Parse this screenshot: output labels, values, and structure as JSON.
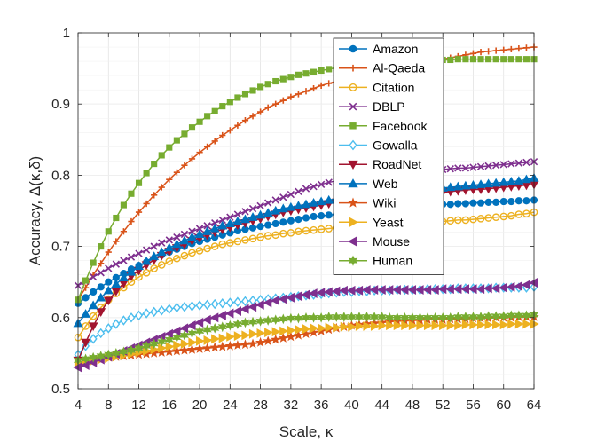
{
  "chart_data": {
    "type": "line",
    "title": "",
    "xlabel": "Scale, κ",
    "ylabel": "Accuracy, Δ(κ,δ)",
    "xlim": [
      4,
      64
    ],
    "ylim": [
      0.5,
      1
    ],
    "xticks": [
      4,
      8,
      12,
      16,
      20,
      24,
      28,
      32,
      36,
      40,
      44,
      48,
      52,
      56,
      60,
      64
    ],
    "yticks": [
      0.5,
      0.6,
      0.7,
      0.8,
      0.9,
      1
    ],
    "ytick_labels": [
      "0.5",
      "0.6",
      "0.7",
      "0.8",
      "0.9",
      "1"
    ],
    "grid": true,
    "legend_position": "top-right",
    "x": [
      4,
      5,
      6,
      7,
      8,
      9,
      10,
      11,
      12,
      13,
      14,
      15,
      16,
      17,
      18,
      19,
      20,
      21,
      22,
      23,
      24,
      25,
      26,
      27,
      28,
      29,
      30,
      31,
      32,
      33,
      34,
      35,
      36,
      37,
      38,
      39,
      40,
      41,
      42,
      43,
      44,
      45,
      46,
      47,
      48,
      49,
      50,
      51,
      52,
      53,
      54,
      55,
      56,
      57,
      58,
      59,
      60,
      61,
      62,
      63,
      64
    ],
    "series": [
      {
        "name": "Amazon",
        "color": "#0072BD",
        "marker": "circle",
        "values": [
          0.62,
          0.628,
          0.636,
          0.643,
          0.65,
          0.656,
          0.662,
          0.668,
          0.673,
          0.678,
          0.683,
          0.688,
          0.692,
          0.696,
          0.7,
          0.704,
          0.707,
          0.71,
          0.713,
          0.716,
          0.719,
          0.722,
          0.724,
          0.726,
          0.728,
          0.73,
          0.732,
          0.734,
          0.736,
          0.738,
          0.74,
          0.742,
          0.743,
          0.744,
          0.745,
          0.746,
          0.747,
          0.748,
          0.749,
          0.75,
          0.751,
          0.752,
          0.753,
          0.754,
          0.755,
          0.756,
          0.757,
          0.758,
          0.759,
          0.759,
          0.76,
          0.76,
          0.761,
          0.761,
          0.762,
          0.762,
          0.763,
          0.763,
          0.764,
          0.764,
          0.765
        ]
      },
      {
        "name": "Al-Qaeda",
        "color": "#D95319",
        "marker": "plus",
        "values": [
          0.625,
          0.642,
          0.66,
          0.676,
          0.692,
          0.707,
          0.721,
          0.735,
          0.748,
          0.76,
          0.772,
          0.783,
          0.794,
          0.804,
          0.814,
          0.823,
          0.832,
          0.84,
          0.848,
          0.856,
          0.863,
          0.87,
          0.877,
          0.883,
          0.889,
          0.895,
          0.9,
          0.905,
          0.91,
          0.914,
          0.918,
          0.922,
          0.926,
          0.929,
          0.932,
          0.935,
          0.938,
          0.941,
          0.943,
          0.945,
          0.947,
          0.949,
          0.951,
          0.953,
          0.955,
          0.957,
          0.959,
          0.961,
          0.963,
          0.965,
          0.967,
          0.969,
          0.971,
          0.973,
          0.974,
          0.975,
          0.976,
          0.977,
          0.978,
          0.979,
          0.98
        ]
      },
      {
        "name": "Citation",
        "color": "#EDB120",
        "marker": "circle-open",
        "values": [
          0.572,
          0.588,
          0.602,
          0.614,
          0.625,
          0.634,
          0.642,
          0.65,
          0.657,
          0.663,
          0.669,
          0.674,
          0.679,
          0.683,
          0.687,
          0.691,
          0.694,
          0.697,
          0.7,
          0.703,
          0.705,
          0.707,
          0.709,
          0.711,
          0.713,
          0.715,
          0.716,
          0.718,
          0.719,
          0.721,
          0.722,
          0.723,
          0.724,
          0.725,
          0.726,
          0.727,
          0.728,
          0.729,
          0.729,
          0.73,
          0.731,
          0.731,
          0.732,
          0.733,
          0.733,
          0.734,
          0.734,
          0.735,
          0.735,
          0.736,
          0.737,
          0.737,
          0.738,
          0.739,
          0.74,
          0.741,
          0.742,
          0.743,
          0.745,
          0.746,
          0.748
        ]
      },
      {
        "name": "DBLP",
        "color": "#7E2F8E",
        "marker": "x",
        "values": [
          0.645,
          0.651,
          0.657,
          0.663,
          0.669,
          0.675,
          0.68,
          0.685,
          0.69,
          0.695,
          0.7,
          0.705,
          0.709,
          0.713,
          0.717,
          0.721,
          0.725,
          0.729,
          0.733,
          0.737,
          0.741,
          0.745,
          0.749,
          0.753,
          0.757,
          0.761,
          0.765,
          0.769,
          0.773,
          0.777,
          0.781,
          0.784,
          0.787,
          0.79,
          0.792,
          0.794,
          0.796,
          0.797,
          0.798,
          0.799,
          0.8,
          0.801,
          0.802,
          0.803,
          0.804,
          0.805,
          0.806,
          0.807,
          0.808,
          0.809,
          0.81,
          0.81,
          0.811,
          0.812,
          0.813,
          0.814,
          0.815,
          0.816,
          0.817,
          0.818,
          0.819
        ]
      },
      {
        "name": "Facebook",
        "color": "#77AC30",
        "marker": "square",
        "values": [
          0.625,
          0.652,
          0.677,
          0.7,
          0.721,
          0.74,
          0.758,
          0.774,
          0.789,
          0.803,
          0.816,
          0.828,
          0.839,
          0.849,
          0.858,
          0.867,
          0.875,
          0.883,
          0.89,
          0.897,
          0.903,
          0.909,
          0.914,
          0.919,
          0.924,
          0.928,
          0.932,
          0.935,
          0.938,
          0.941,
          0.943,
          0.945,
          0.947,
          0.949,
          0.951,
          0.952,
          0.953,
          0.954,
          0.955,
          0.956,
          0.957,
          0.958,
          0.959,
          0.96,
          0.96,
          0.961,
          0.961,
          0.962,
          0.962,
          0.962,
          0.963,
          0.963,
          0.963,
          0.963,
          0.963,
          0.963,
          0.963,
          0.963,
          0.963,
          0.963,
          0.963
        ]
      },
      {
        "name": "Gowalla",
        "color": "#4DBEEE",
        "marker": "diamond-open",
        "values": [
          0.548,
          0.56,
          0.57,
          0.578,
          0.585,
          0.591,
          0.596,
          0.6,
          0.603,
          0.606,
          0.608,
          0.61,
          0.612,
          0.614,
          0.615,
          0.616,
          0.617,
          0.618,
          0.619,
          0.62,
          0.621,
          0.622,
          0.623,
          0.624,
          0.625,
          0.626,
          0.627,
          0.628,
          0.629,
          0.63,
          0.631,
          0.632,
          0.633,
          0.634,
          0.635,
          0.636,
          0.636,
          0.637,
          0.637,
          0.638,
          0.638,
          0.638,
          0.639,
          0.639,
          0.639,
          0.639,
          0.64,
          0.64,
          0.64,
          0.64,
          0.641,
          0.641,
          0.641,
          0.641,
          0.641,
          0.642,
          0.642,
          0.642,
          0.642,
          0.642,
          0.643
        ]
      },
      {
        "name": "RoadNet",
        "color": "#A2142F",
        "marker": "triangle-down",
        "values": [
          0.54,
          0.565,
          0.588,
          0.608,
          0.624,
          0.637,
          0.648,
          0.658,
          0.666,
          0.674,
          0.681,
          0.687,
          0.693,
          0.698,
          0.703,
          0.708,
          0.712,
          0.716,
          0.72,
          0.724,
          0.727,
          0.73,
          0.733,
          0.736,
          0.739,
          0.742,
          0.745,
          0.748,
          0.75,
          0.752,
          0.754,
          0.756,
          0.758,
          0.76,
          0.762,
          0.763,
          0.764,
          0.765,
          0.766,
          0.767,
          0.768,
          0.769,
          0.77,
          0.771,
          0.772,
          0.773,
          0.774,
          0.775,
          0.776,
          0.777,
          0.778,
          0.779,
          0.78,
          0.78,
          0.781,
          0.782,
          0.783,
          0.784,
          0.785,
          0.786,
          0.787
        ]
      },
      {
        "name": "Web",
        "color": "#0072BD",
        "marker": "triangle-up",
        "values": [
          0.592,
          0.605,
          0.617,
          0.628,
          0.638,
          0.647,
          0.656,
          0.664,
          0.672,
          0.679,
          0.686,
          0.692,
          0.698,
          0.703,
          0.708,
          0.713,
          0.717,
          0.721,
          0.725,
          0.729,
          0.732,
          0.735,
          0.738,
          0.741,
          0.744,
          0.747,
          0.75,
          0.753,
          0.755,
          0.757,
          0.759,
          0.761,
          0.763,
          0.765,
          0.767,
          0.769,
          0.77,
          0.771,
          0.772,
          0.773,
          0.774,
          0.775,
          0.776,
          0.777,
          0.778,
          0.779,
          0.78,
          0.781,
          0.782,
          0.783,
          0.784,
          0.785,
          0.786,
          0.787,
          0.788,
          0.789,
          0.79,
          0.791,
          0.792,
          0.794,
          0.796
        ]
      },
      {
        "name": "Wiki",
        "color": "#D95319",
        "marker": "star",
        "values": [
          0.54,
          0.541,
          0.542,
          0.543,
          0.544,
          0.545,
          0.546,
          0.547,
          0.548,
          0.549,
          0.55,
          0.551,
          0.552,
          0.553,
          0.554,
          0.555,
          0.556,
          0.557,
          0.558,
          0.559,
          0.56,
          0.561,
          0.562,
          0.563,
          0.565,
          0.567,
          0.569,
          0.571,
          0.573,
          0.575,
          0.577,
          0.579,
          0.581,
          0.583,
          0.585,
          0.587,
          0.589,
          0.59,
          0.591,
          0.592,
          0.593,
          0.594,
          0.595,
          0.595,
          0.596,
          0.596,
          0.597,
          0.597,
          0.597,
          0.598,
          0.598,
          0.598,
          0.599,
          0.599,
          0.599,
          0.6,
          0.6,
          0.6,
          0.601,
          0.601,
          0.601
        ]
      },
      {
        "name": "Yeast",
        "color": "#EDB120",
        "marker": "triangle-right",
        "values": [
          0.535,
          0.537,
          0.539,
          0.541,
          0.543,
          0.545,
          0.547,
          0.549,
          0.551,
          0.553,
          0.555,
          0.557,
          0.559,
          0.561,
          0.563,
          0.565,
          0.567,
          0.568,
          0.57,
          0.571,
          0.573,
          0.574,
          0.575,
          0.577,
          0.578,
          0.579,
          0.58,
          0.581,
          0.582,
          0.583,
          0.584,
          0.585,
          0.585,
          0.586,
          0.586,
          0.587,
          0.587,
          0.588,
          0.588,
          0.588,
          0.589,
          0.589,
          0.589,
          0.589,
          0.589,
          0.589,
          0.589,
          0.589,
          0.589,
          0.589,
          0.589,
          0.59,
          0.59,
          0.59,
          0.59,
          0.59,
          0.59,
          0.591,
          0.591,
          0.591,
          0.591
        ]
      },
      {
        "name": "Mouse",
        "color": "#7E2F8E",
        "marker": "triangle-left",
        "values": [
          0.53,
          0.533,
          0.537,
          0.541,
          0.545,
          0.549,
          0.553,
          0.557,
          0.561,
          0.565,
          0.569,
          0.573,
          0.577,
          0.581,
          0.585,
          0.589,
          0.593,
          0.597,
          0.6,
          0.603,
          0.606,
          0.609,
          0.612,
          0.615,
          0.618,
          0.621,
          0.624,
          0.626,
          0.628,
          0.63,
          0.632,
          0.634,
          0.635,
          0.636,
          0.637,
          0.638,
          0.638,
          0.638,
          0.639,
          0.639,
          0.639,
          0.639,
          0.639,
          0.639,
          0.639,
          0.639,
          0.639,
          0.639,
          0.64,
          0.64,
          0.64,
          0.64,
          0.64,
          0.64,
          0.641,
          0.641,
          0.642,
          0.643,
          0.644,
          0.646,
          0.649
        ]
      },
      {
        "name": "Human",
        "color": "#77AC30",
        "marker": "star6",
        "values": [
          0.54,
          0.542,
          0.544,
          0.546,
          0.548,
          0.55,
          0.552,
          0.554,
          0.557,
          0.56,
          0.563,
          0.566,
          0.569,
          0.572,
          0.575,
          0.578,
          0.581,
          0.583,
          0.585,
          0.587,
          0.589,
          0.591,
          0.593,
          0.594,
          0.595,
          0.596,
          0.597,
          0.598,
          0.599,
          0.599,
          0.6,
          0.6,
          0.6,
          0.601,
          0.601,
          0.601,
          0.601,
          0.601,
          0.601,
          0.601,
          0.601,
          0.6,
          0.6,
          0.6,
          0.6,
          0.6,
          0.6,
          0.6,
          0.6,
          0.6,
          0.601,
          0.601,
          0.601,
          0.601,
          0.602,
          0.602,
          0.602,
          0.603,
          0.603,
          0.603,
          0.604
        ]
      }
    ]
  }
}
